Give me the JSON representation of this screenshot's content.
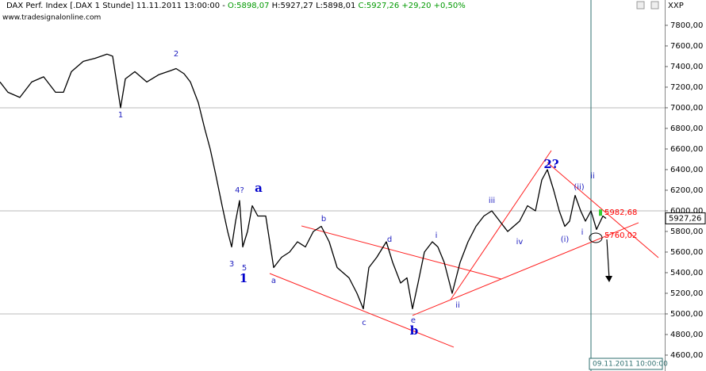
{
  "chart_data": {
    "type": "line",
    "header": [
      {
        "text": "DAX Perf. Index [.DAX  1 Stunde]  11.11.2011 13:00:00  -  ",
        "color": "#000000"
      },
      {
        "text": "O:5898,07",
        "color": "#009900"
      },
      {
        "text": " H:5927,27 L:5898,01 ",
        "color": "#000000"
      },
      {
        "text": "C:5927,26 +29,20 +0,50%",
        "color": "#009900"
      }
    ],
    "source": "www.tradesignalonline.com",
    "corner_label": "XXP",
    "xlim": [
      0,
      838
    ],
    "ylim": [
      4446,
      7938
    ],
    "yticks": [
      {
        "value": 4600,
        "label": "4600,00"
      },
      {
        "value": 4800,
        "label": "4800,00"
      },
      {
        "value": 5000,
        "label": "5000,00"
      },
      {
        "value": 5200,
        "label": "5200,00"
      },
      {
        "value": 5400,
        "label": "5400,00"
      },
      {
        "value": 5600,
        "label": "5600,00"
      },
      {
        "value": 5800,
        "label": "5800,00"
      },
      {
        "value": 6000,
        "label": "6000,00"
      },
      {
        "value": 6200,
        "label": "6200,00"
      },
      {
        "value": 6400,
        "label": "6400,00"
      },
      {
        "value": 6600,
        "label": "6600,00"
      },
      {
        "value": 6800,
        "label": "6800,00"
      },
      {
        "value": 7000,
        "label": "7000,00"
      },
      {
        "value": 7200,
        "label": "7200,00"
      },
      {
        "value": 7400,
        "label": "7400,00"
      },
      {
        "value": 7600,
        "label": "7600,00"
      },
      {
        "value": 7800,
        "label": "7800,00"
      }
    ],
    "hlines": [
      7000,
      6000,
      5000
    ],
    "series": [
      {
        "color": "#000000",
        "x": [
          0,
          10,
          25,
          40,
          55,
          70,
          80,
          90,
          105,
          120,
          135,
          142,
          148,
          152,
          158,
          170,
          185,
          200,
          215,
          222,
          232,
          240,
          250,
          258,
          265,
          272,
          280,
          287,
          292,
          297,
          302,
          306,
          312,
          318,
          325,
          335,
          345,
          355,
          365,
          375,
          385,
          395,
          405,
          415,
          425,
          440,
          450,
          458,
          465,
          475,
          487,
          495,
          505,
          513,
          520,
          527,
          535,
          545,
          552,
          560,
          570,
          580,
          590,
          600,
          610,
          620,
          630,
          640,
          655,
          665,
          675,
          683,
          690,
          698,
          705,
          712,
          718,
          725,
          732,
          738,
          745,
          752,
          760,
          764
        ],
        "values": [
          7250,
          7150,
          7100,
          7250,
          7300,
          7150,
          7150,
          7350,
          7450,
          7480,
          7520,
          7500,
          7200,
          7000,
          7280,
          7350,
          7250,
          7320,
          7360,
          7380,
          7330,
          7250,
          7050,
          6800,
          6600,
          6350,
          6050,
          5800,
          5650,
          5900,
          6100,
          5650,
          5800,
          6050,
          5950,
          5950,
          5450,
          5550,
          5600,
          5700,
          5650,
          5800,
          5850,
          5700,
          5450,
          5350,
          5200,
          5050,
          5450,
          5550,
          5700,
          5500,
          5300,
          5350,
          5050,
          5300,
          5600,
          5700,
          5650,
          5500,
          5200,
          5500,
          5700,
          5850,
          5950,
          6000,
          5900,
          5800,
          5900,
          6050,
          6000,
          6300,
          6400,
          6200,
          6000,
          5850,
          5900,
          6150,
          6000,
          5900,
          6000,
          5820,
          5950,
          5927
        ]
      }
    ],
    "trendlines": [
      {
        "x": [
          380,
          632
        ],
        "y": [
          5854,
          5338
        ]
      },
      {
        "x": [
          340,
          572
        ],
        "y": [
          5392,
          4677
        ]
      },
      {
        "x": [
          520,
          805
        ],
        "y": [
          4985,
          5885
        ]
      },
      {
        "x": [
          568,
          695
        ],
        "y": [
          5138,
          6585
        ]
      },
      {
        "x": [
          690,
          830
        ],
        "y": [
          6469,
          5546
        ]
      }
    ],
    "annotations": [
      {
        "text": "1",
        "x": 152,
        "y": 6931,
        "style": "normal"
      },
      {
        "text": "2",
        "x": 222,
        "y": 7523,
        "style": "normal"
      },
      {
        "text": "3",
        "x": 292,
        "y": 5485,
        "style": "normal"
      },
      {
        "text": "4?",
        "x": 302,
        "y": 6200,
        "style": "normal"
      },
      {
        "text": "5",
        "x": 308,
        "y": 5446,
        "style": "normal"
      },
      {
        "text": "1",
        "x": 307,
        "y": 5338,
        "style": "bold"
      },
      {
        "text": "a",
        "x": 326,
        "y": 6215,
        "style": "bold"
      },
      {
        "text": "a",
        "x": 345,
        "y": 5323,
        "style": "normal"
      },
      {
        "text": "b",
        "x": 408,
        "y": 5923,
        "style": "normal"
      },
      {
        "text": "d",
        "x": 491,
        "y": 5723,
        "style": "normal"
      },
      {
        "text": "c",
        "x": 459,
        "y": 4915,
        "style": "normal"
      },
      {
        "text": "e",
        "x": 521,
        "y": 4938,
        "style": "normal"
      },
      {
        "text": "b",
        "x": 522,
        "y": 4831,
        "style": "bold"
      },
      {
        "text": "i",
        "x": 550,
        "y": 5762,
        "style": "normal"
      },
      {
        "text": "ii",
        "x": 577,
        "y": 5085,
        "style": "normal"
      },
      {
        "text": "iii",
        "x": 620,
        "y": 6100,
        "style": "normal"
      },
      {
        "text": "iv",
        "x": 655,
        "y": 5700,
        "style": "normal"
      },
      {
        "text": "2?",
        "x": 695,
        "y": 6446,
        "style": "bold"
      },
      {
        "text": "(ii)",
        "x": 730,
        "y": 6231,
        "style": "normal"
      },
      {
        "text": "(i)",
        "x": 712,
        "y": 5723,
        "style": "normal"
      },
      {
        "text": "i",
        "x": 734,
        "y": 5792,
        "style": "normal"
      },
      {
        "text": "ii",
        "x": 747,
        "y": 6338,
        "style": "normal"
      }
    ],
    "price_labels": [
      {
        "text": "5982,68",
        "value": 5982.68,
        "color": "#ff0000"
      },
      {
        "text": "5760,02",
        "value": 5760.02,
        "color": "#ff0000"
      }
    ],
    "last_price": {
      "text": "5927,26",
      "value": 5927.26
    },
    "cursor": {
      "x": 745,
      "label": "09.11.2011 10:00:00"
    }
  }
}
